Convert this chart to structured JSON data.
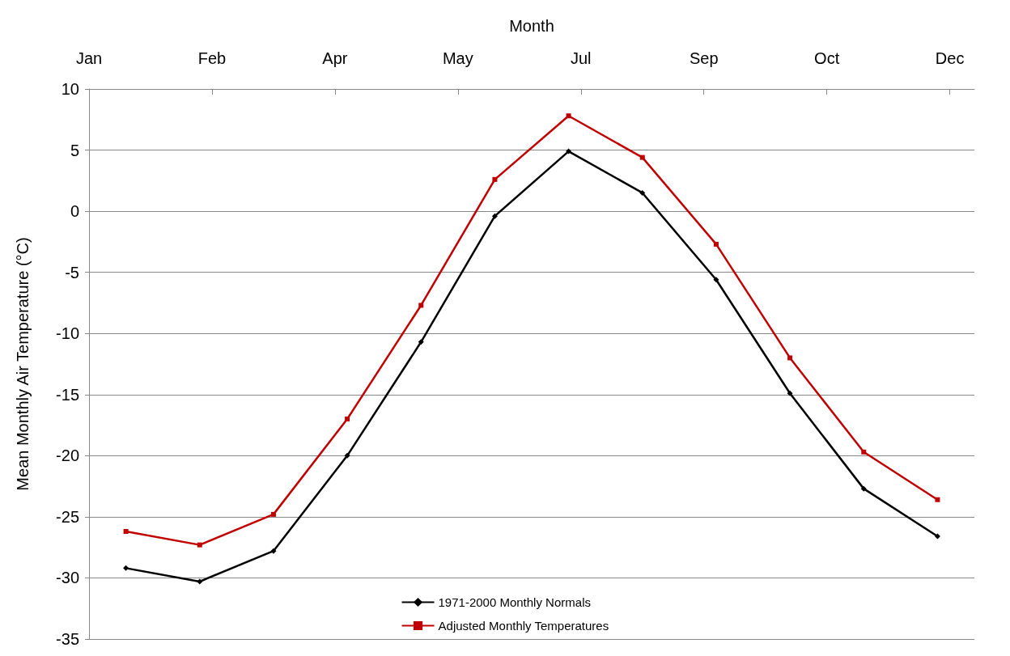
{
  "chart_data": {
    "type": "line",
    "xlabel": "Month",
    "ylabel": "Mean Monthly Air Temperature (°C)",
    "x": [
      "--01-16",
      "--02-15",
      "--03-17",
      "--04-16",
      "--05-16",
      "--06-15",
      "--07-15",
      "--08-14",
      "--09-13",
      "--10-13",
      "--11-12",
      "--12-12"
    ],
    "series": [
      {
        "name": "1971-2000 Monthly Normals",
        "color": "#000000",
        "marker": "diamond",
        "values": [
          -29.2,
          -30.3,
          -27.8,
          -20,
          -10.7,
          -0.4,
          4.9,
          1.5,
          -5.6,
          -14.9,
          -22.7,
          -26.6
        ]
      },
      {
        "name": "Adjusted Monthly Temperatures",
        "color": "#c00000",
        "marker": "square",
        "values": [
          -26.2,
          -27.3,
          -24.8,
          -17,
          -7.7,
          2.6,
          7.8,
          4.4,
          -2.7,
          -12,
          -19.7,
          -23.6
        ]
      }
    ],
    "xlim": [
      "--01-01",
      "--12-27"
    ],
    "xticks": [
      {
        "value": "--01-01",
        "label": "Jan"
      },
      {
        "value": "--02-20",
        "label": "Feb"
      },
      {
        "value": "--04-11",
        "label": "Apr"
      },
      {
        "value": "--05-31",
        "label": "May"
      },
      {
        "value": "--07-20",
        "label": "Jul"
      },
      {
        "value": "--09-08",
        "label": "Sep"
      },
      {
        "value": "--10-28",
        "label": "Oct"
      },
      {
        "value": "--12-17",
        "label": "Dec"
      }
    ],
    "ylim": [
      -35,
      10
    ],
    "yticks": [
      -35,
      -30,
      -25,
      -20,
      -15,
      -10,
      -5,
      0,
      5,
      10
    ],
    "grid": "y",
    "legend": "bottom",
    "line_style": "solid"
  }
}
